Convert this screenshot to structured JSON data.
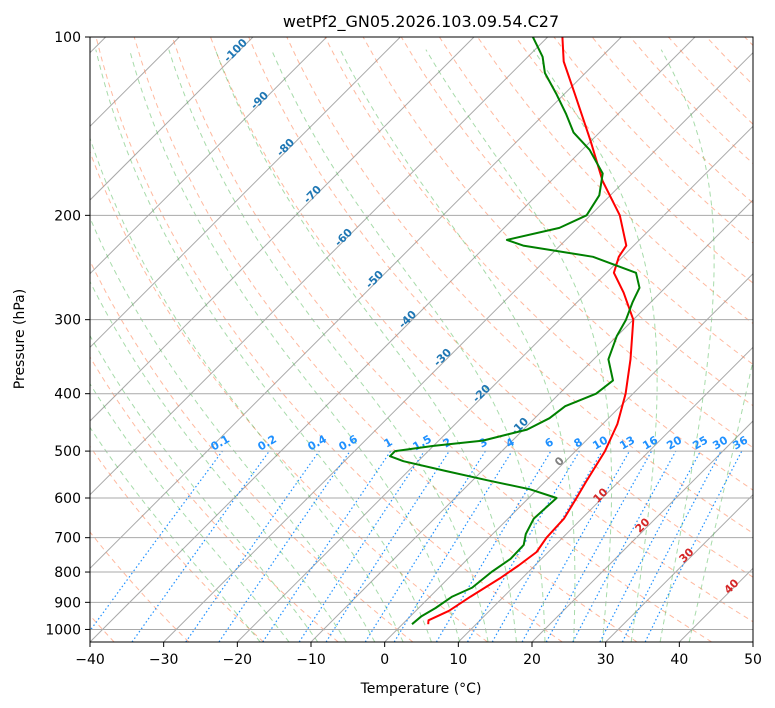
{
  "chart_data": {
    "type": "line",
    "title": "wetPf2_GN05.2026.103.09.54.C27",
    "xlabel": "Temperature (°C)",
    "ylabel": "Pressure (hPa)",
    "xlim": [
      -40,
      50
    ],
    "ylim": [
      1050,
      100
    ],
    "y_scale": "log",
    "x_ticks": [
      -40,
      -30,
      -20,
      -10,
      0,
      10,
      20,
      30,
      40,
      50
    ],
    "y_ticks": [
      1000,
      900,
      800,
      700,
      600,
      500,
      400,
      300,
      200,
      100
    ],
    "grid": true,
    "skew": "isotherms skewed",
    "colors": {
      "temperature": "#ff0000",
      "dewpoint": "#008000",
      "isotherm": "#a9a9a9",
      "dry_adiabat": "#ff7f50",
      "moist_adiabat": "#3cb043",
      "mixing_ratio": "#1e90ff",
      "mixing_ratio_label": "#1f77b4",
      "moist_label": "#d62728",
      "special_isotherm": "#deb887"
    },
    "series": [
      {
        "color_key": "temperature",
        "points": [
          {
            "p": 980,
            "t": 3.5
          },
          {
            "p": 965,
            "t": 3.0
          },
          {
            "p": 930,
            "t": 4.5
          },
          {
            "p": 880,
            "t": 5.5
          },
          {
            "p": 820,
            "t": 7.0
          },
          {
            "p": 780,
            "t": 7.8
          },
          {
            "p": 740,
            "t": 8.4
          },
          {
            "p": 700,
            "t": 7.8
          },
          {
            "p": 650,
            "t": 7.6
          },
          {
            "p": 600,
            "t": 6.5
          },
          {
            "p": 560,
            "t": 5.5
          },
          {
            "p": 500,
            "t": 4.0
          },
          {
            "p": 450,
            "t": 2.0
          },
          {
            "p": 400,
            "t": -1.0
          },
          {
            "p": 350,
            "t": -5.0
          },
          {
            "p": 300,
            "t": -10.0
          },
          {
            "p": 270,
            "t": -15.0
          },
          {
            "p": 250,
            "t": -19.0
          },
          {
            "p": 235,
            "t": -20.5
          },
          {
            "p": 225,
            "t": -21.0
          },
          {
            "p": 200,
            "t": -26.0
          },
          {
            "p": 175,
            "t": -33.0
          },
          {
            "p": 150,
            "t": -40.0
          },
          {
            "p": 125,
            "t": -48.5
          },
          {
            "p": 110,
            "t": -54.5
          },
          {
            "p": 100,
            "t": -58.0
          }
        ]
      },
      {
        "color_key": "dewpoint",
        "points": [
          {
            "p": 980,
            "t": 1.3
          },
          {
            "p": 950,
            "t": 1.5
          },
          {
            "p": 920,
            "t": 2.3
          },
          {
            "p": 880,
            "t": 3.0
          },
          {
            "p": 850,
            "t": 4.5
          },
          {
            "p": 800,
            "t": 5.0
          },
          {
            "p": 760,
            "t": 5.8
          },
          {
            "p": 720,
            "t": 5.7
          },
          {
            "p": 690,
            "t": 4.5
          },
          {
            "p": 650,
            "t": 3.5
          },
          {
            "p": 600,
            "t": 3.8
          },
          {
            "p": 580,
            "t": -1.0
          },
          {
            "p": 560,
            "t": -8.0
          },
          {
            "p": 540,
            "t": -15.0
          },
          {
            "p": 520,
            "t": -22.0
          },
          {
            "p": 510,
            "t": -24.5
          },
          {
            "p": 500,
            "t": -24.5
          },
          {
            "p": 490,
            "t": -20.0
          },
          {
            "p": 480,
            "t": -14.0
          },
          {
            "p": 460,
            "t": -9.5
          },
          {
            "p": 440,
            "t": -8.0
          },
          {
            "p": 420,
            "t": -7.5
          },
          {
            "p": 400,
            "t": -5.0
          },
          {
            "p": 380,
            "t": -4.5
          },
          {
            "p": 350,
            "t": -8.0
          },
          {
            "p": 320,
            "t": -10.0
          },
          {
            "p": 300,
            "t": -11.0
          },
          {
            "p": 280,
            "t": -12.5
          },
          {
            "p": 265,
            "t": -13.5
          },
          {
            "p": 250,
            "t": -16.0
          },
          {
            "p": 235,
            "t": -24.0
          },
          {
            "p": 225,
            "t": -35.0
          },
          {
            "p": 220,
            "t": -38.0
          },
          {
            "p": 210,
            "t": -32.5
          },
          {
            "p": 200,
            "t": -30.5
          },
          {
            "p": 185,
            "t": -31.5
          },
          {
            "p": 170,
            "t": -34.0
          },
          {
            "p": 155,
            "t": -39.0
          },
          {
            "p": 145,
            "t": -43.5
          },
          {
            "p": 135,
            "t": -47.0
          },
          {
            "p": 125,
            "t": -51.0
          },
          {
            "p": 115,
            "t": -55.5
          },
          {
            "p": 108,
            "t": -58.0
          },
          {
            "p": 100,
            "t": -62.0
          }
        ]
      }
    ],
    "annotations": {
      "moist_adiabat_labels": [
        "-100",
        "-90",
        "-80",
        "-70",
        "-60",
        "-50",
        "-40",
        "-30",
        "-20",
        "-10"
      ],
      "mixing_ratio_labels": [
        "0.1",
        "0.2",
        "0.4",
        "0.6",
        "1",
        "1.5",
        "2",
        "3",
        "4",
        "6",
        "8",
        "10",
        "13",
        "16",
        "20",
        "25",
        "30",
        "36"
      ],
      "saturated_adiabat_labels": [
        "0",
        "10",
        "20",
        "30",
        "40"
      ]
    }
  }
}
